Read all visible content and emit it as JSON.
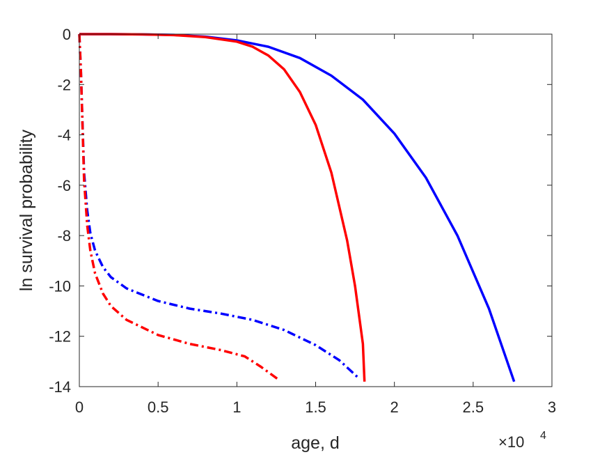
{
  "chart_data": {
    "type": "line",
    "xlabel": "age, d",
    "ylabel": "ln survival probability",
    "x_multiplier_prefix": "×10",
    "x_multiplier_exponent": "4",
    "xlim": [
      0,
      3
    ],
    "ylim": [
      -14,
      0
    ],
    "xticks": [
      "0",
      "0.5",
      "1",
      "1.5",
      "2",
      "2.5",
      "3"
    ],
    "yticks": [
      "0",
      "-2",
      "-4",
      "-6",
      "-8",
      "-10",
      "-12",
      "-14"
    ],
    "grid": false,
    "series": [
      {
        "color": "#0000ff",
        "style": "solid",
        "x": [
          0,
          0.2,
          0.4,
          0.6,
          0.8,
          1.0,
          1.2,
          1.4,
          1.6,
          1.8,
          2.0,
          2.2,
          2.4,
          2.6,
          2.76
        ],
        "y": [
          0,
          0,
          -0.01,
          -0.03,
          -0.1,
          -0.25,
          -0.5,
          -0.95,
          -1.65,
          -2.6,
          -3.95,
          -5.7,
          -8.0,
          -10.9,
          -13.8
        ]
      },
      {
        "color": "#ff0000",
        "style": "solid",
        "x": [
          0,
          0.2,
          0.4,
          0.6,
          0.8,
          1.0,
          1.1,
          1.2,
          1.3,
          1.4,
          1.5,
          1.6,
          1.7,
          1.75,
          1.8,
          1.81
        ],
        "y": [
          0,
          0,
          -0.01,
          -0.04,
          -0.12,
          -0.3,
          -0.5,
          -0.85,
          -1.4,
          -2.3,
          -3.6,
          -5.5,
          -8.2,
          -10.0,
          -12.3,
          -13.8
        ]
      },
      {
        "color": "#0000ff",
        "style": "dashdot",
        "x": [
          0,
          0.01,
          0.02,
          0.03,
          0.05,
          0.07,
          0.1,
          0.15,
          0.2,
          0.3,
          0.5,
          0.7,
          0.9,
          1.1,
          1.3,
          1.5,
          1.65,
          1.78
        ],
        "y": [
          0,
          -1.5,
          -3.5,
          -5.5,
          -7.0,
          -7.9,
          -8.6,
          -9.25,
          -9.65,
          -10.1,
          -10.6,
          -10.9,
          -11.1,
          -11.35,
          -11.75,
          -12.35,
          -12.95,
          -13.7
        ]
      },
      {
        "color": "#ff0000",
        "style": "dashdot",
        "x": [
          0,
          0.01,
          0.02,
          0.03,
          0.05,
          0.07,
          0.1,
          0.15,
          0.2,
          0.3,
          0.5,
          0.7,
          0.9,
          1.05,
          1.15,
          1.26
        ],
        "y": [
          0,
          -1.5,
          -3.6,
          -5.8,
          -7.6,
          -8.6,
          -9.5,
          -10.3,
          -10.8,
          -11.35,
          -11.95,
          -12.3,
          -12.55,
          -12.8,
          -13.2,
          -13.7
        ]
      }
    ]
  }
}
